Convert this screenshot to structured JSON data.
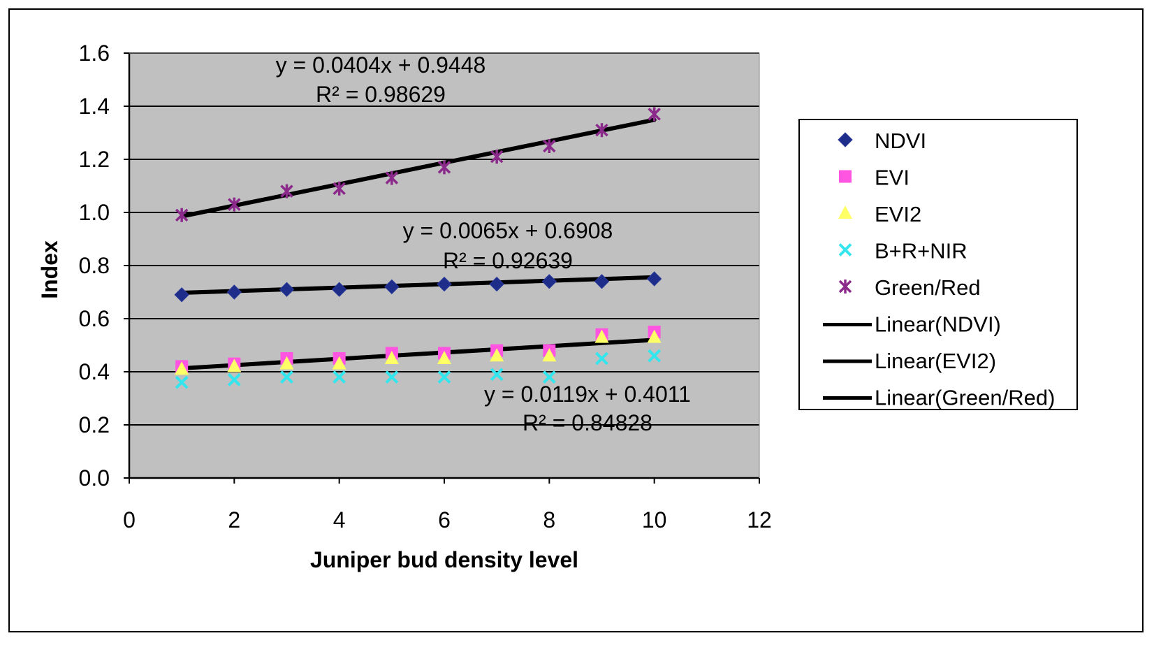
{
  "chart_data": {
    "type": "scatter",
    "xlabel": "Juniper bud density level",
    "ylabel": "Index",
    "xlim": [
      0,
      12
    ],
    "ylim": [
      0,
      1.6
    ],
    "xticks": [
      0,
      2,
      4,
      6,
      8,
      10,
      12
    ],
    "xtick_labels": [
      "0",
      "2",
      "4",
      "6",
      "8",
      "10",
      "12"
    ],
    "yticks": [
      0,
      0.2,
      0.4,
      0.6,
      0.8,
      1.0,
      1.2,
      1.4,
      1.6
    ],
    "ytick_labels": [
      "0.0",
      "0.2",
      "0.4",
      "0.6",
      "0.8",
      "1.0",
      "1.2",
      "1.4",
      "1.6"
    ],
    "grid": "horizontal",
    "plot_background": "#c0c0c0",
    "legend_position": "right",
    "x": [
      1,
      2,
      3,
      4,
      5,
      6,
      7,
      8,
      9,
      10
    ],
    "series": [
      {
        "name": "NDVI",
        "marker": "diamond",
        "color": "#1f2d8a",
        "values": [
          0.69,
          0.7,
          0.71,
          0.71,
          0.72,
          0.73,
          0.73,
          0.74,
          0.74,
          0.75
        ]
      },
      {
        "name": "EVI",
        "marker": "square",
        "color": "#ff55e0",
        "values": [
          0.42,
          0.43,
          0.45,
          0.45,
          0.47,
          0.47,
          0.48,
          0.48,
          0.54,
          0.55
        ]
      },
      {
        "name": "EVI2",
        "marker": "triangle",
        "color": "#ffff66",
        "values": [
          0.41,
          0.42,
          0.43,
          0.43,
          0.45,
          0.45,
          0.46,
          0.46,
          0.53,
          0.53
        ]
      },
      {
        "name": "B+R+NIR",
        "marker": "x",
        "color": "#33e6ee",
        "values": [
          0.36,
          0.37,
          0.38,
          0.38,
          0.38,
          0.38,
          0.39,
          0.38,
          0.45,
          0.46
        ]
      },
      {
        "name": "Green/Red",
        "marker": "star",
        "color": "#8b2a8b",
        "values": [
          0.99,
          1.03,
          1.08,
          1.09,
          1.13,
          1.17,
          1.21,
          1.25,
          1.31,
          1.37
        ]
      }
    ],
    "trendlines": [
      {
        "name": "Linear(NDVI)",
        "slope": 0.0065,
        "intercept": 0.6908,
        "x_range": [
          1,
          10
        ],
        "color": "#000000"
      },
      {
        "name": "Linear(EVI2)",
        "slope": 0.0119,
        "intercept": 0.4011,
        "x_range": [
          1,
          10
        ],
        "color": "#000000"
      },
      {
        "name": "Linear(Green/Red)",
        "slope": 0.0404,
        "intercept": 0.9448,
        "x_range": [
          1,
          10
        ],
        "color": "#000000"
      }
    ],
    "annotations": [
      {
        "equation": "y = 0.0404x + 0.9448",
        "r2": "R² = 0.98629"
      },
      {
        "equation": "y = 0.0065x + 0.6908",
        "r2": "R² = 0.92639"
      },
      {
        "equation": "y = 0.0119x + 0.4011",
        "r2": "R² = 0.84828"
      }
    ]
  }
}
